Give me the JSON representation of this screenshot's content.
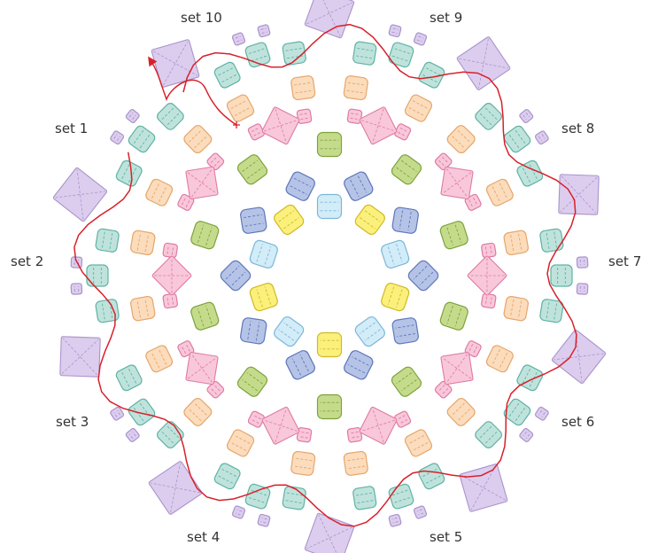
{
  "labels": [
    {
      "id": "set-1",
      "text": "set 1"
    },
    {
      "id": "set-2",
      "text": "set 2"
    },
    {
      "id": "set-3",
      "text": "set 3"
    },
    {
      "id": "set-4",
      "text": "set 4"
    },
    {
      "id": "set-5",
      "text": "set 5"
    },
    {
      "id": "set-6",
      "text": "set 6"
    },
    {
      "id": "set-7",
      "text": "set 7"
    },
    {
      "id": "set-8",
      "text": "set 8"
    },
    {
      "id": "set-9",
      "text": "set 9"
    },
    {
      "id": "set-10",
      "text": "set 10"
    }
  ],
  "colors": {
    "thread": "#d8202a",
    "lilac": {
      "fill": "#dccdee",
      "stroke": "#a993cc"
    },
    "teal": {
      "fill": "#bfe3dc",
      "stroke": "#5fb3a4"
    },
    "peach": {
      "fill": "#fbdcbc",
      "stroke": "#e6a66a"
    },
    "pink": {
      "fill": "#f8c7da",
      "stroke": "#e07aa3"
    },
    "green": {
      "fill": "#c5db8c",
      "stroke": "#7ea23b"
    },
    "blue": {
      "fill": "#b5c3e6",
      "stroke": "#5f77bd"
    },
    "skyblue": {
      "fill": "#d2ecf8",
      "stroke": "#7ab8d9"
    },
    "yellow": {
      "fill": "#fbf07c",
      "stroke": "#d0b925"
    }
  }
}
